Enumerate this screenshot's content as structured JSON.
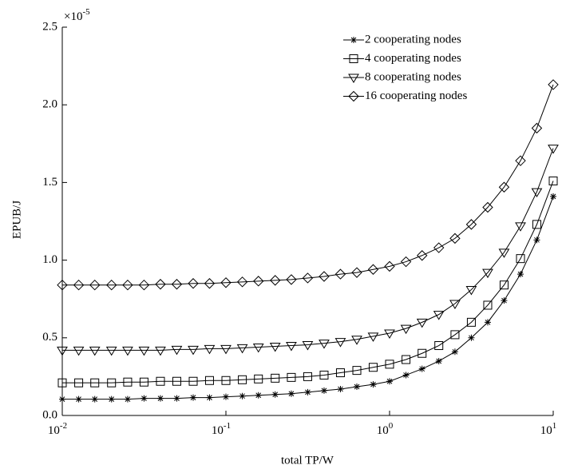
{
  "chart_data": {
    "type": "line",
    "x_label": "total TP/W",
    "y_label": "EPUB/J",
    "y_multiplier": {
      "base": "×10",
      "exponent": "-5"
    },
    "x_log": true,
    "xlim": [
      0.01,
      10
    ],
    "xticks": [
      {
        "value": 0.01,
        "label": "10",
        "exponent": "-2"
      },
      {
        "value": 0.1,
        "label": "10",
        "exponent": "-1"
      },
      {
        "value": 1,
        "label": "10",
        "exponent": "0"
      },
      {
        "value": 10,
        "label": "10",
        "exponent": "1"
      }
    ],
    "ylim": [
      0,
      2.5
    ],
    "yticks": [
      {
        "value": 0,
        "label": "0.0"
      },
      0.5,
      {
        "value": 1,
        "label": "1.0"
      },
      1.5,
      {
        "value": 2,
        "label": "2.0"
      },
      2.5
    ],
    "legend": "upper-right",
    "x": [
      0.01,
      0.0126,
      0.0158,
      0.02,
      0.0251,
      0.0316,
      0.0398,
      0.0501,
      0.0631,
      0.0794,
      0.1,
      0.126,
      0.158,
      0.2,
      0.251,
      0.316,
      0.398,
      0.501,
      0.631,
      0.794,
      1,
      1.26,
      1.58,
      2,
      2.51,
      3.16,
      3.98,
      5.01,
      6.31,
      7.94,
      10
    ],
    "series": [
      {
        "name": "2 cooperating nodes",
        "color": "#000000",
        "marker": "star",
        "values": [
          0.105,
          0.105,
          0.105,
          0.105,
          0.105,
          0.11,
          0.11,
          0.11,
          0.115,
          0.115,
          0.12,
          0.125,
          0.13,
          0.135,
          0.14,
          0.15,
          0.16,
          0.17,
          0.185,
          0.2,
          0.22,
          0.26,
          0.3,
          0.35,
          0.41,
          0.5,
          0.6,
          0.74,
          0.91,
          1.13,
          1.41
        ]
      },
      {
        "name": "4 cooperating nodes",
        "color": "#000000",
        "marker": "square",
        "values": [
          0.21,
          0.21,
          0.21,
          0.21,
          0.215,
          0.215,
          0.22,
          0.22,
          0.22,
          0.225,
          0.225,
          0.23,
          0.235,
          0.24,
          0.245,
          0.25,
          0.26,
          0.275,
          0.29,
          0.31,
          0.33,
          0.36,
          0.4,
          0.45,
          0.52,
          0.6,
          0.71,
          0.84,
          1.01,
          1.23,
          1.51
        ]
      },
      {
        "name": "8 cooperating nodes",
        "color": "#000000",
        "marker": "triangle-down",
        "values": [
          0.42,
          0.42,
          0.42,
          0.42,
          0.42,
          0.42,
          0.42,
          0.425,
          0.425,
          0.43,
          0.43,
          0.435,
          0.44,
          0.445,
          0.45,
          0.455,
          0.465,
          0.475,
          0.49,
          0.51,
          0.53,
          0.56,
          0.6,
          0.65,
          0.72,
          0.81,
          0.92,
          1.05,
          1.22,
          1.44,
          1.72
        ]
      },
      {
        "name": "16 cooperating nodes",
        "color": "#000000",
        "marker": "diamond",
        "values": [
          0.84,
          0.84,
          0.84,
          0.84,
          0.84,
          0.84,
          0.845,
          0.845,
          0.85,
          0.85,
          0.855,
          0.86,
          0.865,
          0.87,
          0.875,
          0.885,
          0.895,
          0.91,
          0.92,
          0.94,
          0.96,
          0.99,
          1.03,
          1.08,
          1.14,
          1.23,
          1.34,
          1.47,
          1.64,
          1.85,
          2.13
        ]
      }
    ]
  }
}
